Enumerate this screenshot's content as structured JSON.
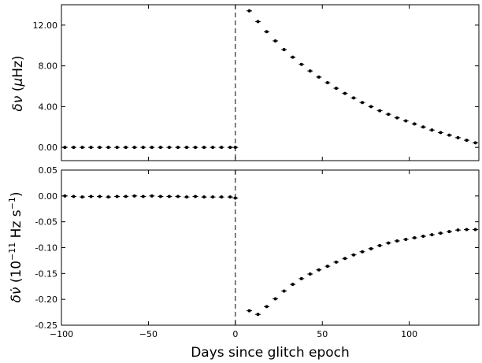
{
  "chart_data": [
    {
      "type": "scatter",
      "ylabel_parts": [
        "δν",
        " (",
        "μ",
        "Hz)"
      ],
      "xlim": [
        -100,
        140
      ],
      "ylim": [
        -1.3,
        14.0
      ],
      "yticks": [
        0,
        4,
        8,
        12
      ],
      "ytick_labels": [
        "0.00",
        "4.00",
        "8.00",
        "12.00"
      ],
      "xticks": [
        -100,
        -50,
        0,
        50,
        100
      ],
      "grid": false,
      "vertical_line_x": 0,
      "series": [
        {
          "x": [
            -98,
            -93,
            -88,
            -83,
            -78,
            -73,
            -68,
            -63,
            -58,
            -53,
            -48,
            -43,
            -38,
            -33,
            -28,
            -23,
            -18,
            -13,
            -8,
            -3,
            0,
            8,
            13,
            18,
            23,
            28,
            33,
            38,
            43,
            48,
            53,
            58,
            63,
            68,
            73,
            78,
            83,
            88,
            93,
            98,
            103,
            108,
            113,
            118,
            123,
            128,
            133,
            138
          ],
          "y": [
            0,
            0,
            0,
            0,
            0,
            0,
            0,
            0,
            0,
            0,
            0,
            0,
            0,
            0,
            0,
            0,
            0,
            0,
            0,
            0,
            0,
            13.4,
            12.35,
            11.35,
            10.45,
            9.6,
            8.85,
            8.15,
            7.5,
            6.9,
            6.35,
            5.8,
            5.3,
            4.85,
            4.4,
            4.0,
            3.6,
            3.25,
            2.9,
            2.6,
            2.3,
            2.0,
            1.7,
            1.45,
            1.2,
            0.95,
            0.7,
            0.45
          ]
        }
      ]
    },
    {
      "type": "scatter",
      "ylabel_parts": [
        "δν̇",
        " (10",
        "−11",
        " Hz s",
        "−1",
        ")"
      ],
      "xlabel": "Days since glitch epoch",
      "xlim": [
        -100,
        140
      ],
      "ylim": [
        -0.25,
        0.05
      ],
      "yticks": [
        0.05,
        0.0,
        -0.05,
        -0.1,
        -0.15,
        -0.2,
        -0.25
      ],
      "ytick_labels": [
        "0.05",
        "0.00",
        "-0.05",
        "-0.10",
        "-0.15",
        "-0.20",
        "-0.25"
      ],
      "xticks": [
        -100,
        -50,
        0,
        50,
        100
      ],
      "xtick_labels": [
        "−100",
        "−50",
        "0",
        "50",
        "100"
      ],
      "grid": false,
      "vertical_line_x": 0,
      "series": [
        {
          "x": [
            -98,
            -93,
            -88,
            -83,
            -78,
            -73,
            -68,
            -63,
            -58,
            -53,
            -48,
            -43,
            -38,
            -33,
            -28,
            -23,
            -18,
            -13,
            -8,
            -3,
            0,
            8,
            13,
            18,
            23,
            28,
            33,
            38,
            43,
            48,
            53,
            58,
            63,
            68,
            73,
            78,
            83,
            88,
            93,
            98,
            103,
            108,
            113,
            118,
            123,
            128,
            133,
            138
          ],
          "y": [
            0.0,
            -0.001,
            -0.002,
            -0.001,
            -0.001,
            -0.002,
            -0.001,
            -0.001,
            0.0,
            -0.001,
            0.0,
            -0.001,
            -0.001,
            -0.001,
            -0.002,
            -0.001,
            -0.002,
            -0.002,
            -0.002,
            -0.002,
            -0.004,
            -0.222,
            -0.229,
            -0.214,
            -0.199,
            -0.184,
            -0.171,
            -0.16,
            -0.151,
            -0.143,
            -0.136,
            -0.128,
            -0.121,
            -0.114,
            -0.108,
            -0.102,
            -0.096,
            -0.091,
            -0.087,
            -0.084,
            -0.081,
            -0.078,
            -0.075,
            -0.072,
            -0.069,
            -0.066,
            -0.065,
            -0.065
          ]
        }
      ]
    }
  ]
}
